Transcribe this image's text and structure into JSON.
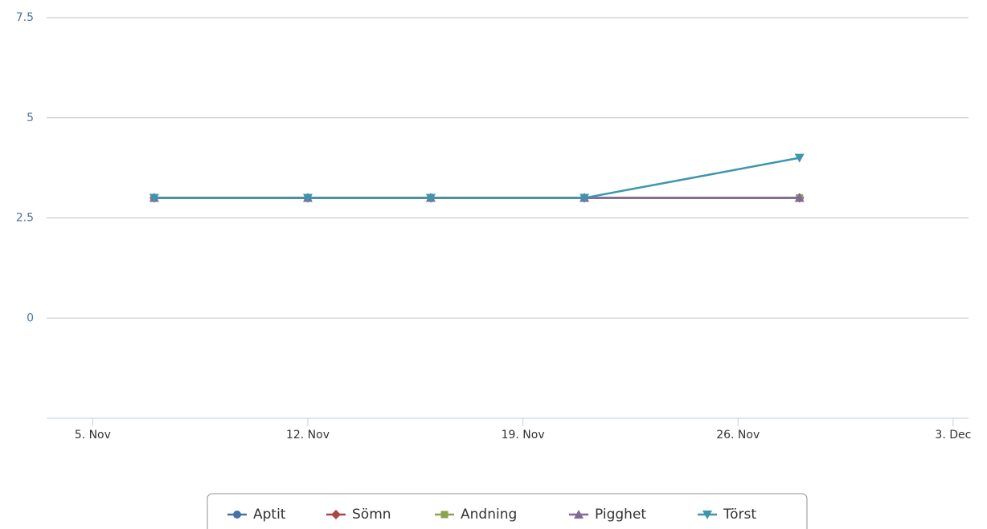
{
  "chart_data": {
    "type": "line",
    "x": [
      "--11-07",
      "--11-12",
      "--11-16",
      "--11-21",
      "--11-28"
    ],
    "series": [
      {
        "name": "Aptit",
        "color": "#4572A7",
        "marker": "circle",
        "values": [
          3,
          3,
          3,
          3,
          3
        ]
      },
      {
        "name": "Sömn",
        "color": "#AA4643",
        "marker": "diamond",
        "values": [
          3,
          3,
          3,
          3,
          3
        ]
      },
      {
        "name": "Andning",
        "color": "#89A54E",
        "marker": "square",
        "values": [
          3,
          3,
          3,
          3,
          3
        ]
      },
      {
        "name": "Pigghet",
        "color": "#80699B",
        "marker": "triangle",
        "values": [
          3,
          3,
          3,
          3,
          3
        ]
      },
      {
        "name": "Törst",
        "color": "#3D96AE",
        "marker": "triangle-down",
        "values": [
          3,
          3,
          3,
          3,
          4
        ]
      }
    ],
    "xlim": [
      "--11-03T12",
      "--12-03T12"
    ],
    "xticks": [
      {
        "value": "--11-05",
        "label": "5. Nov"
      },
      {
        "value": "--11-12",
        "label": "12. Nov"
      },
      {
        "value": "--11-19",
        "label": "19. Nov"
      },
      {
        "value": "--11-26",
        "label": "26. Nov"
      },
      {
        "value": "--12-03",
        "label": "3. Dec"
      }
    ],
    "ylim": [
      -2.5,
      7.5
    ],
    "yticks": [
      0,
      2.5,
      5,
      7.5
    ],
    "grid": true,
    "legend": "bottom"
  }
}
